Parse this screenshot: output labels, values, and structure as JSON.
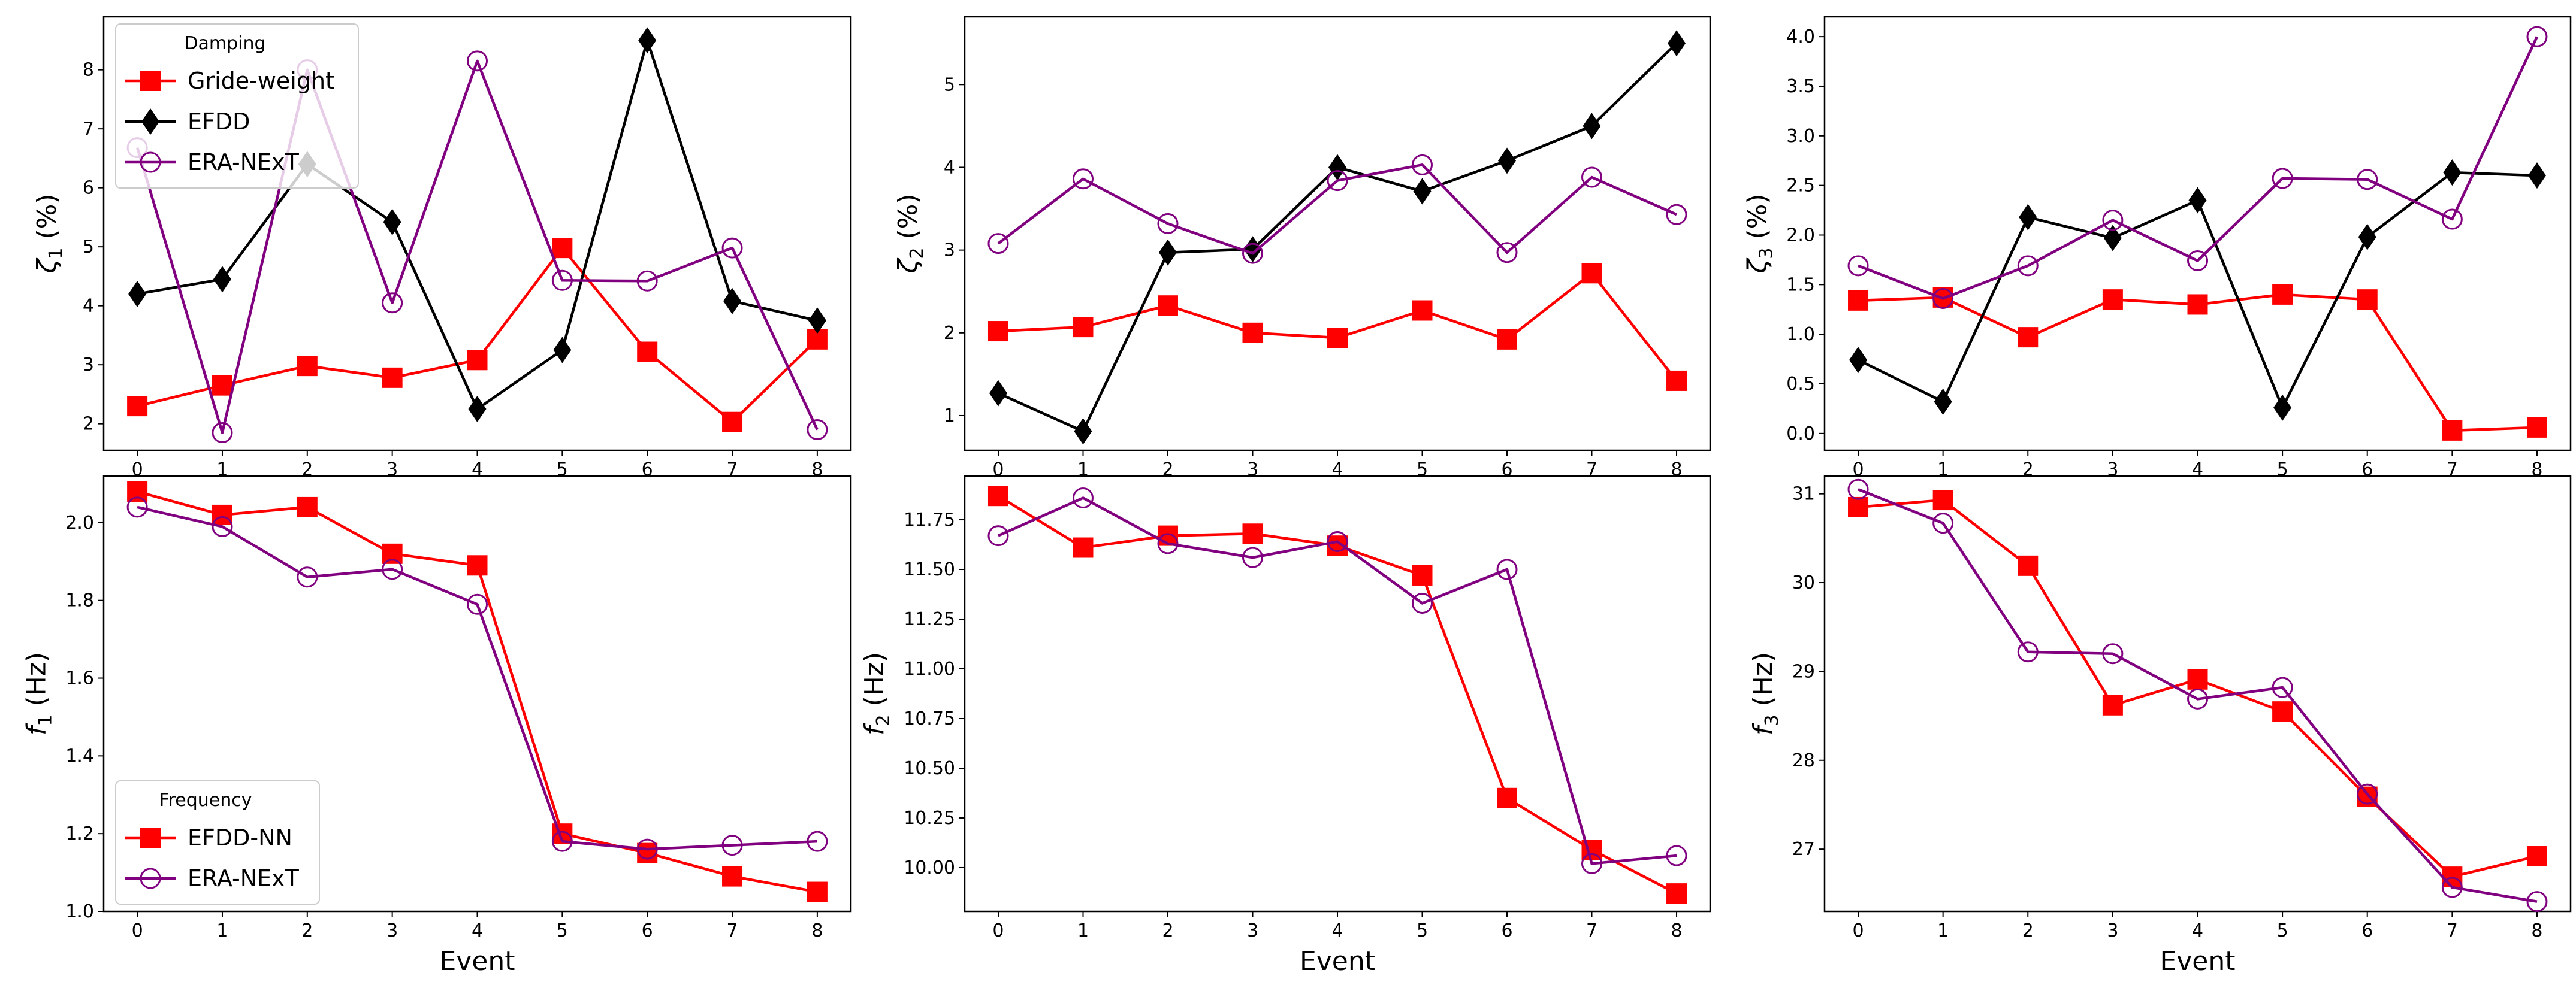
{
  "chart_data": [
    {
      "type": "line",
      "title": "",
      "xlabel": "",
      "ylabel_symbol": "ζ",
      "ylabel_sub": "1",
      "ylabel_unit": " (%)",
      "x": [
        0,
        1,
        2,
        3,
        4,
        5,
        6,
        7,
        8
      ],
      "ylim": [
        1.55,
        8.9
      ],
      "yticks": [
        "2",
        "3",
        "4",
        "5",
        "6",
        "7",
        "8"
      ],
      "legend": {
        "title": "Damping",
        "placement": "top-left"
      },
      "series": [
        {
          "name": "Gride-weight",
          "color": "#ff0000",
          "marker": "square",
          "values": [
            2.3,
            2.65,
            2.98,
            2.78,
            3.08,
            4.98,
            3.22,
            2.03,
            3.43
          ]
        },
        {
          "name": "EFDD",
          "color": "#000000",
          "marker": "diamond",
          "values": [
            4.2,
            4.45,
            6.4,
            5.42,
            2.25,
            3.25,
            8.5,
            4.08,
            3.75
          ]
        },
        {
          "name": "ERA-NExT",
          "color": "#800080",
          "marker": "circle-open",
          "values": [
            6.68,
            1.85,
            8.0,
            4.05,
            8.15,
            4.43,
            4.42,
            4.98,
            1.9
          ]
        }
      ]
    },
    {
      "type": "line",
      "title": "",
      "xlabel": "",
      "ylabel_symbol": "ζ",
      "ylabel_sub": "2",
      "ylabel_unit": " (%)",
      "x": [
        0,
        1,
        2,
        3,
        4,
        5,
        6,
        7,
        8
      ],
      "ylim": [
        0.58,
        5.82
      ],
      "yticks": [
        "1",
        "2",
        "3",
        "4",
        "5"
      ],
      "series": [
        {
          "name": "Gride-weight",
          "color": "#ff0000",
          "marker": "square",
          "values": [
            2.02,
            2.07,
            2.33,
            2.0,
            1.94,
            2.27,
            1.92,
            2.72,
            1.42
          ]
        },
        {
          "name": "EFDD",
          "color": "#000000",
          "marker": "diamond",
          "values": [
            1.27,
            0.81,
            2.97,
            3.01,
            4.0,
            3.71,
            4.08,
            4.5,
            5.5
          ]
        },
        {
          "name": "ERA-NExT",
          "color": "#800080",
          "marker": "circle-open",
          "values": [
            3.08,
            3.86,
            3.32,
            2.96,
            3.84,
            4.03,
            2.97,
            3.88,
            3.43
          ]
        }
      ]
    },
    {
      "type": "line",
      "title": "",
      "xlabel": "",
      "ylabel_symbol": "ζ",
      "ylabel_sub": "3",
      "ylabel_unit": " (%)",
      "x": [
        0,
        1,
        2,
        3,
        4,
        5,
        6,
        7,
        8
      ],
      "ylim": [
        -0.17,
        4.2
      ],
      "yticks": [
        "0.0",
        "0.5",
        "1.0",
        "1.5",
        "2.0",
        "2.5",
        "3.0",
        "3.5",
        "4.0"
      ],
      "series": [
        {
          "name": "Gride-weight",
          "color": "#ff0000",
          "marker": "square",
          "values": [
            1.34,
            1.37,
            0.97,
            1.35,
            1.3,
            1.4,
            1.35,
            0.03,
            0.06
          ]
        },
        {
          "name": "EFDD",
          "color": "#000000",
          "marker": "diamond",
          "values": [
            0.74,
            0.32,
            2.18,
            1.97,
            2.35,
            0.26,
            1.98,
            2.63,
            2.6
          ]
        },
        {
          "name": "ERA-NExT",
          "color": "#800080",
          "marker": "circle-open",
          "values": [
            1.69,
            1.36,
            1.69,
            2.15,
            1.74,
            2.57,
            2.56,
            2.16,
            4.0
          ]
        }
      ]
    },
    {
      "type": "line",
      "title": "",
      "xlabel": "Event",
      "ylabel_symbol": "f",
      "ylabel_sub": "1",
      "ylabel_unit": " (Hz)",
      "x": [
        0,
        1,
        2,
        3,
        4,
        5,
        6,
        7,
        8
      ],
      "ylim": [
        1.0,
        2.12
      ],
      "yticks": [
        "1.0",
        "1.2",
        "1.4",
        "1.6",
        "1.8",
        "2.0"
      ],
      "legend": {
        "title": "Frequency",
        "placement": "bottom-left"
      },
      "series": [
        {
          "name": "EFDD-NN",
          "color": "#ff0000",
          "marker": "square",
          "values": [
            2.08,
            2.02,
            2.04,
            1.92,
            1.89,
            1.2,
            1.15,
            1.09,
            1.05
          ]
        },
        {
          "name": "ERA-NExT",
          "color": "#800080",
          "marker": "circle-open",
          "values": [
            2.04,
            1.99,
            1.86,
            1.88,
            1.79,
            1.18,
            1.16,
            1.17,
            1.18
          ]
        }
      ]
    },
    {
      "type": "line",
      "title": "",
      "xlabel": "Event",
      "ylabel_symbol": "f",
      "ylabel_sub": "2",
      "ylabel_unit": " (Hz)",
      "x": [
        0,
        1,
        2,
        3,
        4,
        5,
        6,
        7,
        8
      ],
      "ylim": [
        9.78,
        11.97
      ],
      "yticks": [
        "10.00",
        "10.25",
        "10.50",
        "10.75",
        "11.00",
        "11.25",
        "11.50",
        "11.75"
      ],
      "series": [
        {
          "name": "EFDD-NN",
          "color": "#ff0000",
          "marker": "square",
          "values": [
            11.87,
            11.61,
            11.67,
            11.68,
            11.62,
            11.47,
            10.35,
            10.09,
            9.87
          ]
        },
        {
          "name": "ERA-NExT",
          "color": "#800080",
          "marker": "circle-open",
          "values": [
            11.67,
            11.86,
            11.63,
            11.56,
            11.64,
            11.33,
            11.5,
            10.02,
            10.06
          ]
        }
      ]
    },
    {
      "type": "line",
      "title": "",
      "xlabel": "Event",
      "ylabel_symbol": "f",
      "ylabel_sub": "3",
      "ylabel_unit": " (Hz)",
      "x": [
        0,
        1,
        2,
        3,
        4,
        5,
        6,
        7,
        8
      ],
      "ylim": [
        26.3,
        31.2
      ],
      "yticks": [
        "27",
        "28",
        "29",
        "30",
        "31"
      ],
      "series": [
        {
          "name": "EFDD-NN",
          "color": "#ff0000",
          "marker": "square",
          "values": [
            30.85,
            30.93,
            30.19,
            28.62,
            28.91,
            28.55,
            27.59,
            26.69,
            26.92
          ]
        },
        {
          "name": "ERA-NExT",
          "color": "#800080",
          "marker": "circle-open",
          "values": [
            31.05,
            30.67,
            29.22,
            29.2,
            28.69,
            28.82,
            27.62,
            26.57,
            26.41
          ]
        }
      ]
    }
  ]
}
